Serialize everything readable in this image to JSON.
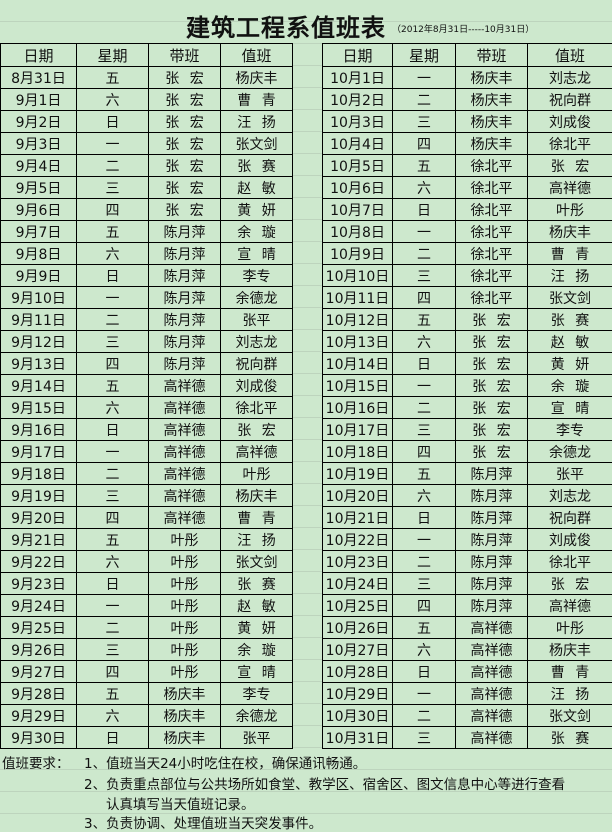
{
  "title": "建筑工程系值班表",
  "subtitle": "（2012年8月31日-----10月31日）",
  "headers": [
    "日期",
    "星期",
    "带班",
    "值班"
  ],
  "left_rows": [
    [
      "8月31日",
      "五",
      "张 宏",
      "杨庆丰"
    ],
    [
      "9月1日",
      "六",
      "张 宏",
      "曹 青"
    ],
    [
      "9月2日",
      "日",
      "张 宏",
      "汪 扬"
    ],
    [
      "9月3日",
      "一",
      "张 宏",
      "张文剑"
    ],
    [
      "9月4日",
      "二",
      "张 宏",
      "张 赛"
    ],
    [
      "9月5日",
      "三",
      "张 宏",
      "赵 敏"
    ],
    [
      "9月6日",
      "四",
      "张 宏",
      "黄 妍"
    ],
    [
      "9月7日",
      "五",
      "陈月萍",
      "余 璇"
    ],
    [
      "9月8日",
      "六",
      "陈月萍",
      "宣 晴"
    ],
    [
      "9月9日",
      "日",
      "陈月萍",
      "李专"
    ],
    [
      "9月10日",
      "一",
      "陈月萍",
      "余德龙"
    ],
    [
      "9月11日",
      "二",
      "陈月萍",
      "张平"
    ],
    [
      "9月12日",
      "三",
      "陈月萍",
      "刘志龙"
    ],
    [
      "9月13日",
      "四",
      "陈月萍",
      "祝向群"
    ],
    [
      "9月14日",
      "五",
      "高祥德",
      "刘成俊"
    ],
    [
      "9月15日",
      "六",
      "高祥德",
      "徐北平"
    ],
    [
      "9月16日",
      "日",
      "高祥德",
      "张 宏"
    ],
    [
      "9月17日",
      "一",
      "高祥德",
      "高祥德"
    ],
    [
      "9月18日",
      "二",
      "高祥德",
      "叶彤"
    ],
    [
      "9月19日",
      "三",
      "高祥德",
      "杨庆丰"
    ],
    [
      "9月20日",
      "四",
      "高祥德",
      "曹 青"
    ],
    [
      "9月21日",
      "五",
      "叶彤",
      "汪 扬"
    ],
    [
      "9月22日",
      "六",
      "叶彤",
      "张文剑"
    ],
    [
      "9月23日",
      "日",
      "叶彤",
      "张 赛"
    ],
    [
      "9月24日",
      "一",
      "叶彤",
      "赵 敏"
    ],
    [
      "9月25日",
      "二",
      "叶彤",
      "黄 妍"
    ],
    [
      "9月26日",
      "三",
      "叶彤",
      "余 璇"
    ],
    [
      "9月27日",
      "四",
      "叶彤",
      "宣 晴"
    ],
    [
      "9月28日",
      "五",
      "杨庆丰",
      "李专"
    ],
    [
      "9月29日",
      "六",
      "杨庆丰",
      "余德龙"
    ],
    [
      "9月30日",
      "日",
      "杨庆丰",
      "张平"
    ]
  ],
  "right_rows": [
    [
      "10月1日",
      "一",
      "杨庆丰",
      "刘志龙"
    ],
    [
      "10月2日",
      "二",
      "杨庆丰",
      "祝向群"
    ],
    [
      "10月3日",
      "三",
      "杨庆丰",
      "刘成俊"
    ],
    [
      "10月4日",
      "四",
      "杨庆丰",
      "徐北平"
    ],
    [
      "10月5日",
      "五",
      "徐北平",
      "张 宏"
    ],
    [
      "10月6日",
      "六",
      "徐北平",
      "高祥德"
    ],
    [
      "10月7日",
      "日",
      "徐北平",
      "叶彤"
    ],
    [
      "10月8日",
      "一",
      "徐北平",
      "杨庆丰"
    ],
    [
      "10月9日",
      "二",
      "徐北平",
      "曹 青"
    ],
    [
      "10月10日",
      "三",
      "徐北平",
      "汪 扬"
    ],
    [
      "10月11日",
      "四",
      "徐北平",
      "张文剑"
    ],
    [
      "10月12日",
      "五",
      "张 宏",
      "张 赛"
    ],
    [
      "10月13日",
      "六",
      "张 宏",
      "赵 敏"
    ],
    [
      "10月14日",
      "日",
      "张 宏",
      "黄 妍"
    ],
    [
      "10月15日",
      "一",
      "张 宏",
      "余 璇"
    ],
    [
      "10月16日",
      "二",
      "张 宏",
      "宣 晴"
    ],
    [
      "10月17日",
      "三",
      "张 宏",
      "李专"
    ],
    [
      "10月18日",
      "四",
      "张 宏",
      "余德龙"
    ],
    [
      "10月19日",
      "五",
      "陈月萍",
      "张平"
    ],
    [
      "10月20日",
      "六",
      "陈月萍",
      "刘志龙"
    ],
    [
      "10月21日",
      "日",
      "陈月萍",
      "祝向群"
    ],
    [
      "10月22日",
      "一",
      "陈月萍",
      "刘成俊"
    ],
    [
      "10月23日",
      "二",
      "陈月萍",
      "徐北平"
    ],
    [
      "10月24日",
      "三",
      "陈月萍",
      "张 宏"
    ],
    [
      "10月25日",
      "四",
      "陈月萍",
      "高祥德"
    ],
    [
      "10月26日",
      "五",
      "高祥德",
      "叶彤"
    ],
    [
      "10月27日",
      "六",
      "高祥德",
      "杨庆丰"
    ],
    [
      "10月28日",
      "日",
      "高祥德",
      "曹 青"
    ],
    [
      "10月29日",
      "一",
      "高祥德",
      "汪 扬"
    ],
    [
      "10月30日",
      "二",
      "高祥德",
      "张文剑"
    ],
    [
      "10月31日",
      "三",
      "高祥德",
      "张 赛"
    ]
  ],
  "notes": {
    "label": "值班要求：",
    "lines": [
      "1、值班当天24小时吃住在校，确保通讯畅通。",
      "2、负责重点部位与公共场所如食堂、教学区、宿舍区、图文信息中心等进行查看",
      "认真填写当天值班记录。",
      "3、负责协调、处理值班当天突发事件。"
    ]
  },
  "colors": {
    "background": "#cde8cd",
    "border": "#000000",
    "gridline": "#b9cfb9"
  }
}
